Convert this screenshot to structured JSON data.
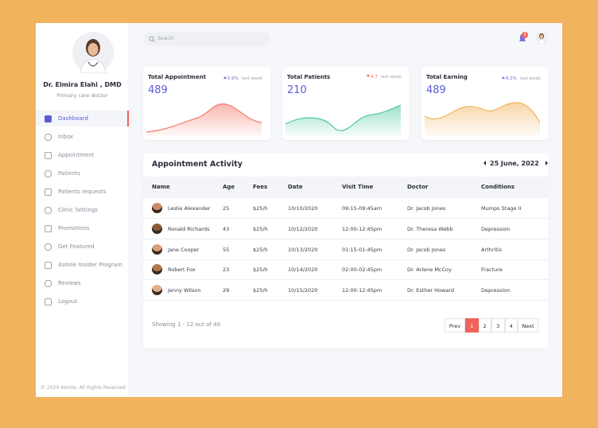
{
  "sidebar": {
    "doctor_name": "Dr. Elmira Elahi , DMD",
    "doctor_role": "Primary care doctor",
    "nav": [
      "Dashboard",
      "Inbox",
      "Appointment",
      "Patients",
      "Patients requests",
      "Clinic Settings",
      "Promotions",
      "Get Featured",
      "4smile Insider Program",
      "Reviews",
      "Logout"
    ],
    "active": 0,
    "footer": "© 2020 4smile, All Rights Reserved"
  },
  "topbar": {
    "search_placeholder": "Search",
    "notification_count": 9
  },
  "stats": [
    {
      "title": "Total Appointment",
      "change": "5.9%",
      "trend": "up",
      "period": "last week",
      "value": 489,
      "color": "#f47c6c"
    },
    {
      "title": "Total Patients",
      "change": "4.7",
      "trend": "down",
      "period": "last week",
      "value": 210,
      "color": "#4fc99a"
    },
    {
      "title": "Total Earning",
      "change": "8.2%",
      "trend": "up",
      "period": "last week",
      "value": 489,
      "color": "#f2b35e"
    }
  ],
  "appointments": {
    "title": "Appointment Activity",
    "date": "25 June, 2022",
    "columns": [
      "Name",
      "Age",
      "Fees",
      "Date",
      "Visit Time",
      "Doctor",
      "Conditions"
    ],
    "rows": [
      [
        "Leslie Alexander",
        25,
        "$25/h",
        "10/10/2020",
        "09:15-09:45am",
        "Dr. Jacob Jones",
        "Mumps Stage II"
      ],
      [
        "Ronald Richards",
        43,
        "$25/h",
        "10/12/2020",
        "12:00-12:45pm",
        "Dr. Theresa Webb",
        "Depression"
      ],
      [
        "Jane Cooper",
        55,
        "$25/h",
        "10/13/2020",
        "01:15-01:45pm",
        "Dr. Jacob Jones",
        "Arthritis"
      ],
      [
        "Robert Fox",
        23,
        "$25/h",
        "10/14/2020",
        "02:00-02:45pm",
        "Dr. Arlene McCoy",
        "Fracture"
      ],
      [
        "Jenny Wilson",
        29,
        "$25/h",
        "10/15/2020",
        "12:00-12:45pm",
        "Dr. Esther Howard",
        "Depression"
      ]
    ]
  },
  "pagination": {
    "summary": "Showing 1 - 12 out of 40",
    "prev": "Prev",
    "pages": [
      1,
      2,
      3,
      4
    ],
    "current": 1,
    "next": "Next"
  }
}
